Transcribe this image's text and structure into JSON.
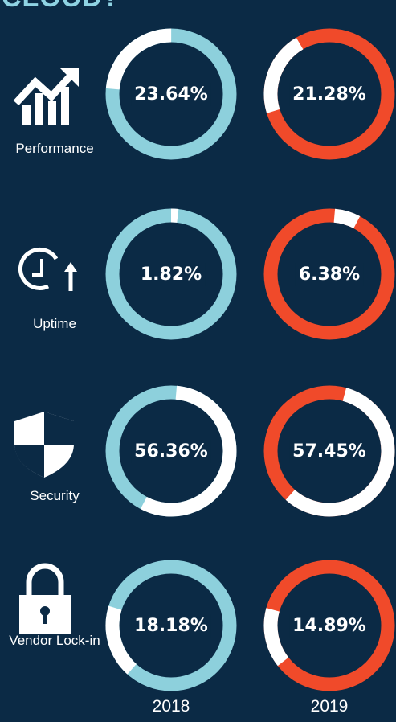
{
  "chart_data": {
    "type": "donut",
    "title": "CLOUD?",
    "categories": [
      "Performance",
      "Uptime",
      "Security",
      "Vendor Lock-in"
    ],
    "series": [
      {
        "name": "2018",
        "color": "#8dd0dc",
        "values": [
          23.64,
          1.82,
          56.36,
          18.18
        ],
        "value_labels": [
          "23.64%",
          "1.82%",
          "56.36%",
          "18.18%"
        ]
      },
      {
        "name": "2019",
        "color": "#f04a2a",
        "values": [
          21.28,
          6.38,
          57.45,
          14.89
        ],
        "value_labels": [
          "21.28%",
          "6.38%",
          "57.45%",
          "14.89%"
        ]
      }
    ],
    "remainder_color": "#ffffff"
  }
}
